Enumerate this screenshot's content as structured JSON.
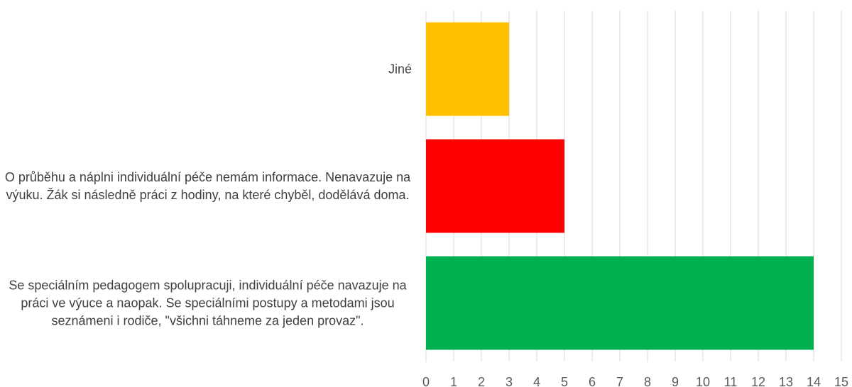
{
  "chart_data": {
    "type": "bar",
    "orientation": "horizontal",
    "categories": [
      "Jiné",
      "O průběhu a náplni individuální péče nemám informace. Nenavazuje na výuku. Žák si následně práci z hodiny, na které chyběl, dodělává doma.",
      "Se speciálním pedagogem spolupracuji, individuální péče navazuje na práci ve výuce a naopak. Se speciálními postupy a metodami jsou seznámeni i rodiče, \"všichni táhneme za jeden provaz\"."
    ],
    "values": [
      3,
      5,
      14
    ],
    "colors": [
      "#ffc000",
      "#ff0000",
      "#00b050"
    ],
    "xlim": [
      0,
      15
    ],
    "xticks": [
      0,
      1,
      2,
      3,
      4,
      5,
      6,
      7,
      8,
      9,
      10,
      11,
      12,
      13,
      14,
      15
    ],
    "grid": true
  }
}
